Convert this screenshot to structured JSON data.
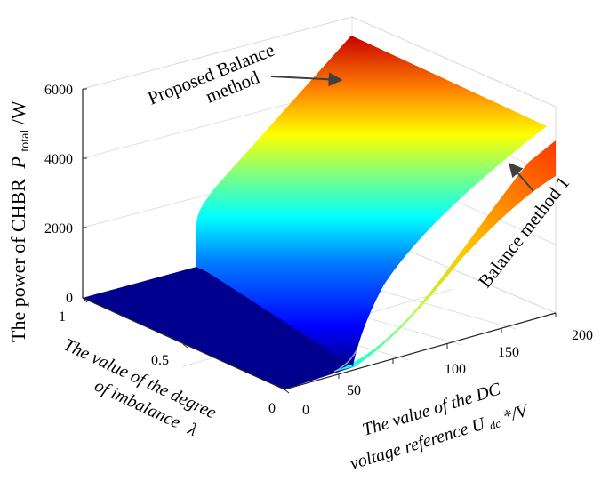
{
  "chart_data": {
    "type": "surface",
    "title": "",
    "zlabel": {
      "main": "The power of CHBR",
      "symbol": "P",
      "subscript": "total",
      "unit": "/W"
    },
    "xlabel": {
      "line1": "The value of the degree",
      "line2": "of imbalance",
      "symbol": "λ"
    },
    "ylabel": {
      "line1": "The value of the DC",
      "line2_prefix": "voltage reference U",
      "line2_sub": "dc",
      "line2_suffix": "*/V"
    },
    "x_ticks": [
      "0",
      "0.5",
      "1"
    ],
    "y_ticks": [
      "0",
      "50",
      "100",
      "150",
      "200"
    ],
    "z_ticks": [
      "0",
      "2000",
      "4000",
      "6000"
    ],
    "xlim": [
      0,
      1
    ],
    "ylim": [
      0,
      200
    ],
    "zlim": [
      0,
      6000
    ],
    "colormap": "jet",
    "grid": true,
    "series": [
      {
        "name": "Proposed Balance method",
        "note": "power rises with the DC voltage reference, independent of lambda",
        "y": [
          0,
          20,
          40,
          60,
          80,
          100,
          120,
          140,
          160,
          180,
          200
        ],
        "z": [
          0,
          1700,
          2200,
          2700,
          3200,
          3700,
          4200,
          4700,
          5200,
          5700,
          6000
        ]
      },
      {
        "name": "Balance method 1",
        "note": "curve at lambda = 0",
        "y": [
          0,
          40,
          80,
          120,
          160,
          200
        ],
        "z": [
          0,
          300,
          900,
          1800,
          3000,
          4600
        ]
      }
    ],
    "annotations": [
      {
        "text_line1": "Proposed Balance",
        "text_line2": "method",
        "target": "Proposed Balance method"
      },
      {
        "text": "Balance method 1",
        "target": "Balance method 1"
      }
    ]
  }
}
